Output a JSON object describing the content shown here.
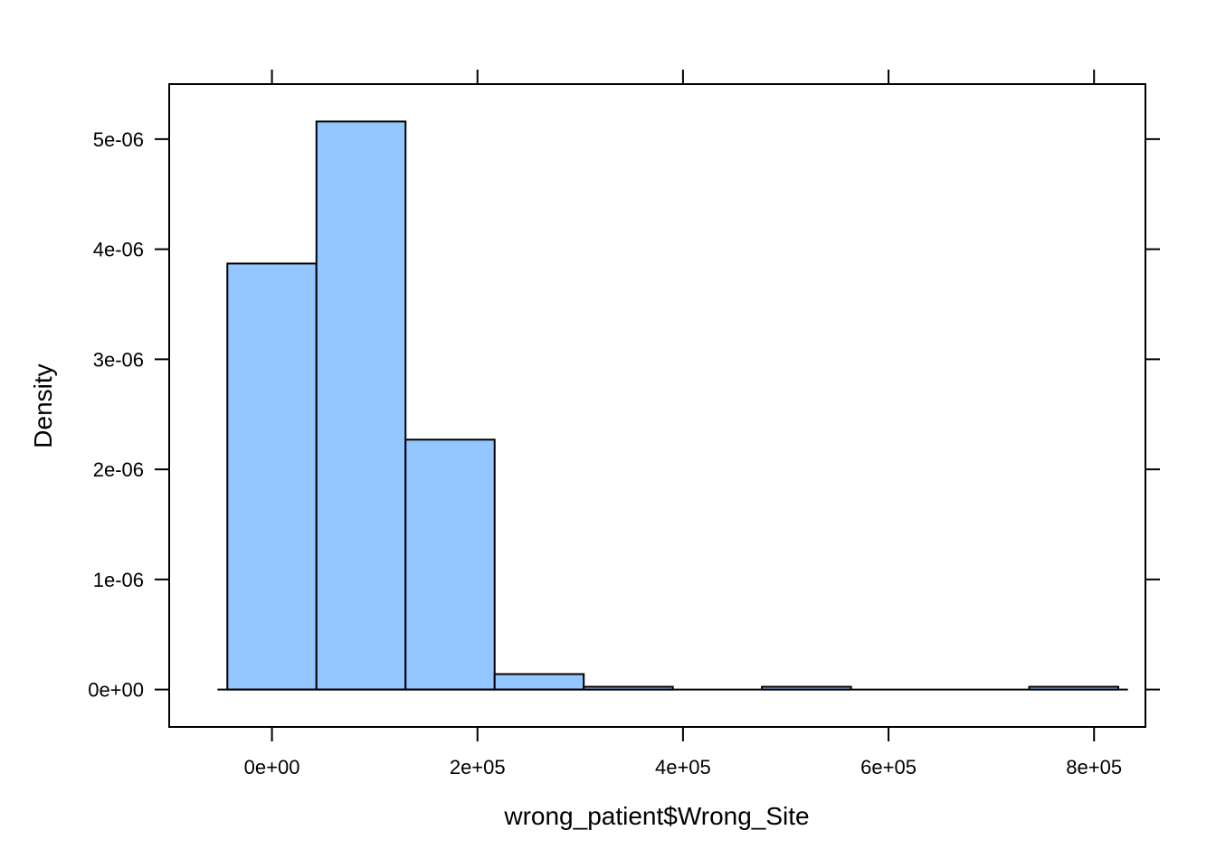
{
  "chart_data": {
    "type": "bar",
    "title": "",
    "xlabel": "wrong_patient$Wrong_Site",
    "ylabel": "Density",
    "xlim": [
      -100000,
      850000
    ],
    "ylim": [
      -3.4e-07,
      5.5e-06
    ],
    "bin_width": 86700,
    "bins": [
      {
        "x0": -43400,
        "x1": 43300,
        "density": 3.87e-06
      },
      {
        "x0": 43300,
        "x1": 130000,
        "density": 5.16e-06
      },
      {
        "x0": 130000,
        "x1": 216700,
        "density": 2.27e-06
      },
      {
        "x0": 216700,
        "x1": 303400,
        "density": 1.4e-07
      },
      {
        "x0": 303400,
        "x1": 390100,
        "density": 2.5e-08
      },
      {
        "x0": 390100,
        "x1": 476800,
        "density": 0
      },
      {
        "x0": 476800,
        "x1": 563500,
        "density": 2.5e-08
      },
      {
        "x0": 563500,
        "x1": 650200,
        "density": 0
      },
      {
        "x0": 650200,
        "x1": 736900,
        "density": 0
      },
      {
        "x0": 736900,
        "x1": 823600,
        "density": 2.5e-08
      }
    ],
    "baseline": [
      -53000,
      833000
    ],
    "x_ticks": [
      {
        "value": 0,
        "label": "0e+00"
      },
      {
        "value": 200000,
        "label": "2e+05"
      },
      {
        "value": 400000,
        "label": "4e+05"
      },
      {
        "value": 600000,
        "label": "6e+05"
      },
      {
        "value": 800000,
        "label": "8e+05"
      }
    ],
    "y_ticks": [
      {
        "value": 0,
        "label": "0e+00"
      },
      {
        "value": 1e-06,
        "label": "1e-06"
      },
      {
        "value": 2e-06,
        "label": "2e-06"
      },
      {
        "value": 3e-06,
        "label": "3e-06"
      },
      {
        "value": 4e-06,
        "label": "4e-06"
      },
      {
        "value": 5e-06,
        "label": "5e-06"
      }
    ],
    "bar_fill": "#94c6ff",
    "bar_stroke": "#000000",
    "grid": false,
    "legend": "none"
  }
}
